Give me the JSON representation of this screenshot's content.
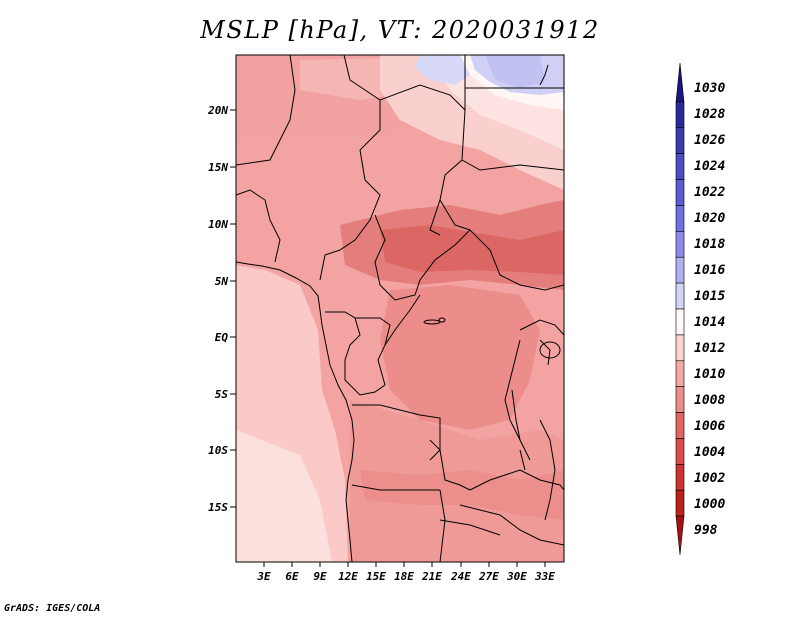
{
  "title": "MSLP [hPa], VT: 2020031912",
  "credit": "GrADS: IGES/COLA",
  "map": {
    "lat_labels": [
      "20N",
      "15N",
      "10N",
      "5N",
      "EQ",
      "5S",
      "10S",
      "15S"
    ],
    "lon_labels": [
      "3E",
      "6E",
      "9E",
      "12E",
      "15E",
      "18E",
      "21E",
      "24E",
      "27E",
      "30E",
      "33E"
    ]
  },
  "colorbar": {
    "levels": [
      "1030",
      "1028",
      "1026",
      "1024",
      "1022",
      "1020",
      "1018",
      "1016",
      "1015",
      "1014",
      "1012",
      "1010",
      "1008",
      "1006",
      "1004",
      "1002",
      "1000",
      "998"
    ],
    "colors": [
      "#1c1480",
      "#2a2a9c",
      "#3b3bb0",
      "#4c4cc4",
      "#5c5cd4",
      "#7070e0",
      "#8c8ce8",
      "#b0b0f0",
      "#d4d4f8",
      "#fff8f8",
      "#fcd4d2",
      "#f4a8a6",
      "#ec8e8c",
      "#e06664",
      "#dc4c48",
      "#d03430",
      "#c0201a",
      "#a81010"
    ]
  }
}
